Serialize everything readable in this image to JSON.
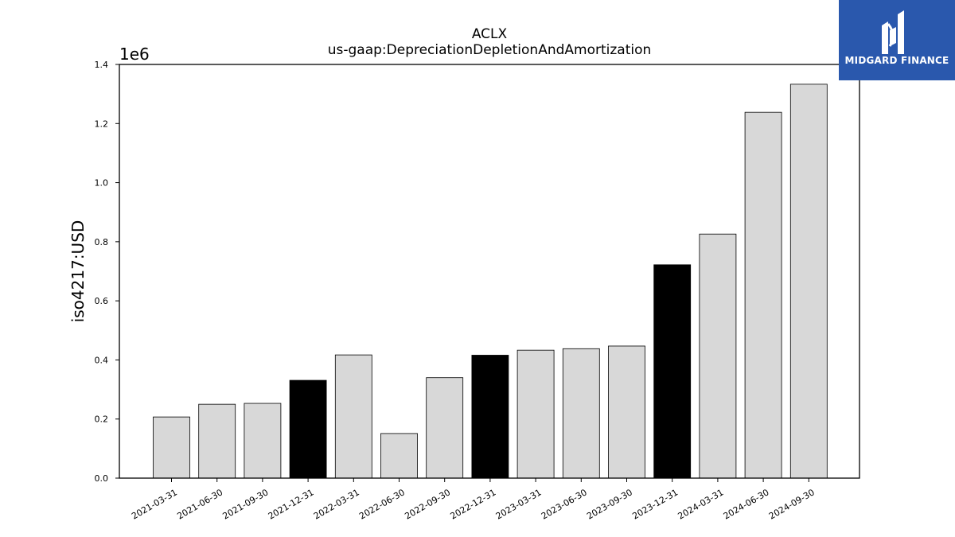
{
  "chart_data": {
    "type": "bar",
    "title": "ACLX",
    "subtitle": "us-gaap:DepreciationDepletionAndAmortization",
    "ylabel": "iso4217:USD",
    "y_offset_label": "1e6",
    "ylim": [
      0,
      1400000
    ],
    "yticks": [
      0,
      200000,
      400000,
      600000,
      800000,
      1000000,
      1200000,
      1400000
    ],
    "ytick_labels": [
      "0.0",
      "0.2",
      "0.4",
      "0.6",
      "0.8",
      "1.0",
      "1.2",
      "1.4"
    ],
    "categories": [
      "2021-03-31",
      "2021-06-30",
      "2021-09-30",
      "2021-12-31",
      "2022-03-31",
      "2022-06-30",
      "2022-09-30",
      "2022-12-31",
      "2023-03-31",
      "2023-06-30",
      "2023-09-30",
      "2023-12-31",
      "2024-03-31",
      "2024-06-30",
      "2024-09-30"
    ],
    "values": [
      207000,
      250000,
      253000,
      331000,
      417000,
      151000,
      340000,
      416000,
      433000,
      438000,
      447000,
      722000,
      826000,
      1238000,
      1333000
    ],
    "bar_colors": [
      "#d8d8d8",
      "#d8d8d8",
      "#d8d8d8",
      "#000000",
      "#d8d8d8",
      "#d8d8d8",
      "#d8d8d8",
      "#000000",
      "#d8d8d8",
      "#d8d8d8",
      "#d8d8d8",
      "#000000",
      "#d8d8d8",
      "#d8d8d8",
      "#d8d8d8"
    ],
    "grid": false
  },
  "logo": {
    "text": "MIDGARD FINANCE",
    "background": "#2a58ad",
    "icon": "midgard-logo-icon"
  }
}
